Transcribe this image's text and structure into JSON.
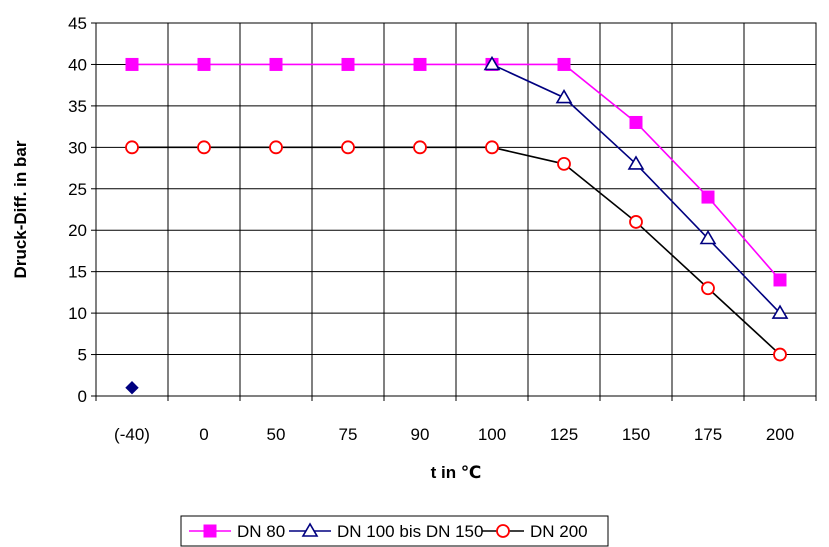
{
  "chart_data": {
    "type": "line",
    "xlabel": "t in ℃",
    "ylabel": "Druck-Diff. in bar",
    "categories": [
      "(-40)",
      "0",
      "50",
      "75",
      "90",
      "100",
      "125",
      "150",
      "175",
      "200"
    ],
    "ylim": [
      0,
      45
    ],
    "yticks": [
      0,
      5,
      10,
      15,
      20,
      25,
      30,
      35,
      40,
      45
    ],
    "grid": true,
    "legend_position": "bottom",
    "series": [
      {
        "name": "DN 80",
        "color": "#ff00ff",
        "marker": "square-filled",
        "values": [
          40,
          40,
          40,
          40,
          40,
          40,
          40,
          33,
          24,
          14
        ]
      },
      {
        "name": "DN 100 bis DN 150",
        "color": "#000080",
        "marker": "triangle-open",
        "values": [
          null,
          null,
          null,
          null,
          null,
          40,
          36,
          28,
          19,
          10
        ]
      },
      {
        "name": "DN 200",
        "color": "#ff0000",
        "line_color": "#000000",
        "marker": "circle-open",
        "values": [
          30,
          30,
          30,
          30,
          30,
          30,
          28,
          21,
          13,
          5
        ]
      }
    ],
    "extra_points": [
      {
        "category": "(-40)",
        "value": 1,
        "color": "#000080",
        "marker": "diamond-filled"
      }
    ]
  }
}
